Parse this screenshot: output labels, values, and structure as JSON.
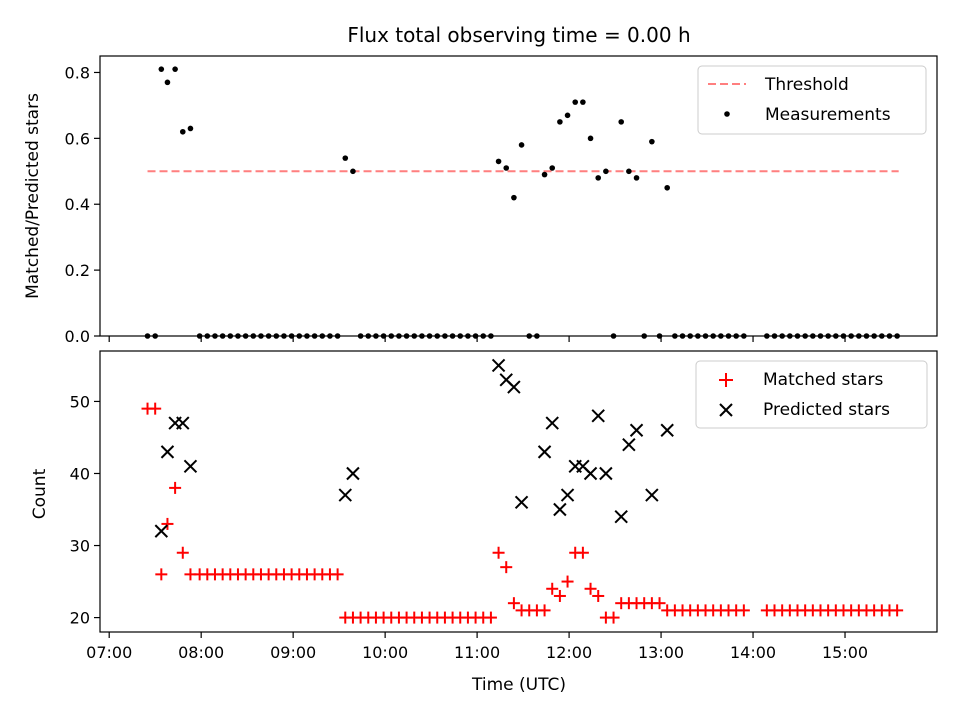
{
  "title": "Flux total observing time = 0.00 h",
  "chart_data": [
    {
      "type": "scatter",
      "title": "Flux total observing time = 0.00 h",
      "ylabel": "Matched/Predicted stars",
      "xlabel": "",
      "x_range": [
        "07:00",
        "16:00"
      ],
      "ylim": [
        0,
        0.85
      ],
      "yticks": [
        "0.0",
        "0.2",
        "0.4",
        "0.6",
        "0.8"
      ],
      "legend": {
        "placement": "top-right",
        "entries": [
          "Threshold",
          "Measurements"
        ]
      },
      "colors": {
        "threshold": "#ff7f7f",
        "measurements": "#000000"
      },
      "series": [
        {
          "name": "Threshold",
          "kind": "dashed-line",
          "points": [
            [
              "07:25",
              0.5
            ],
            [
              "15:35",
              0.5
            ]
          ]
        },
        {
          "name": "Measurements",
          "kind": "dots",
          "points": [
            [
              "07:25",
              0.0
            ],
            [
              "07:30",
              0.0
            ],
            [
              "07:34",
              0.81
            ],
            [
              "07:38",
              0.77
            ],
            [
              "07:43",
              0.81
            ],
            [
              "07:48",
              0.62
            ],
            [
              "07:53",
              0.63
            ],
            [
              "07:59",
              0.0
            ],
            [
              "08:04",
              0.0
            ],
            [
              "08:09",
              0.0
            ],
            [
              "08:14",
              0.0
            ],
            [
              "08:19",
              0.0
            ],
            [
              "08:24",
              0.0
            ],
            [
              "08:29",
              0.0
            ],
            [
              "08:34",
              0.0
            ],
            [
              "08:39",
              0.0
            ],
            [
              "08:44",
              0.0
            ],
            [
              "08:49",
              0.0
            ],
            [
              "08:54",
              0.0
            ],
            [
              "08:59",
              0.0
            ],
            [
              "09:04",
              0.0
            ],
            [
              "09:09",
              0.0
            ],
            [
              "09:14",
              0.0
            ],
            [
              "09:19",
              0.0
            ],
            [
              "09:24",
              0.0
            ],
            [
              "09:29",
              0.0
            ],
            [
              "09:34",
              0.54
            ],
            [
              "09:39",
              0.5
            ],
            [
              "09:44",
              0.0
            ],
            [
              "09:49",
              0.0
            ],
            [
              "09:54",
              0.0
            ],
            [
              "09:59",
              0.0
            ],
            [
              "10:04",
              0.0
            ],
            [
              "10:09",
              0.0
            ],
            [
              "10:14",
              0.0
            ],
            [
              "10:19",
              0.0
            ],
            [
              "10:24",
              0.0
            ],
            [
              "10:29",
              0.0
            ],
            [
              "10:34",
              0.0
            ],
            [
              "10:39",
              0.0
            ],
            [
              "10:44",
              0.0
            ],
            [
              "10:49",
              0.0
            ],
            [
              "10:54",
              0.0
            ],
            [
              "10:59",
              0.0
            ],
            [
              "11:04",
              0.0
            ],
            [
              "11:09",
              0.0
            ],
            [
              "11:14",
              0.53
            ],
            [
              "11:19",
              0.51
            ],
            [
              "11:24",
              0.42
            ],
            [
              "11:29",
              0.58
            ],
            [
              "11:34",
              0.0
            ],
            [
              "11:39",
              0.0
            ],
            [
              "11:44",
              0.49
            ],
            [
              "11:49",
              0.51
            ],
            [
              "11:54",
              0.65
            ],
            [
              "11:59",
              0.67
            ],
            [
              "12:04",
              0.71
            ],
            [
              "12:09",
              0.71
            ],
            [
              "12:14",
              0.6
            ],
            [
              "12:19",
              0.48
            ],
            [
              "12:24",
              0.5
            ],
            [
              "12:29",
              0.0
            ],
            [
              "12:34",
              0.65
            ],
            [
              "12:39",
              0.5
            ],
            [
              "12:44",
              0.48
            ],
            [
              "12:49",
              0.0
            ],
            [
              "12:54",
              0.59
            ],
            [
              "12:59",
              0.0
            ],
            [
              "13:04",
              0.45
            ],
            [
              "13:09",
              0.0
            ],
            [
              "13:14",
              0.0
            ],
            [
              "13:19",
              0.0
            ],
            [
              "13:24",
              0.0
            ],
            [
              "13:29",
              0.0
            ],
            [
              "13:34",
              0.0
            ],
            [
              "13:39",
              0.0
            ],
            [
              "13:44",
              0.0
            ],
            [
              "13:49",
              0.0
            ],
            [
              "13:54",
              0.0
            ],
            [
              "14:09",
              0.0
            ],
            [
              "14:14",
              0.0
            ],
            [
              "14:19",
              0.0
            ],
            [
              "14:24",
              0.0
            ],
            [
              "14:29",
              0.0
            ],
            [
              "14:34",
              0.0
            ],
            [
              "14:39",
              0.0
            ],
            [
              "14:44",
              0.0
            ],
            [
              "14:49",
              0.0
            ],
            [
              "14:54",
              0.0
            ],
            [
              "14:59",
              0.0
            ],
            [
              "15:04",
              0.0
            ],
            [
              "15:09",
              0.0
            ],
            [
              "15:14",
              0.0
            ],
            [
              "15:19",
              0.0
            ],
            [
              "15:24",
              0.0
            ],
            [
              "15:29",
              0.0
            ],
            [
              "15:34",
              0.0
            ]
          ]
        }
      ]
    },
    {
      "type": "scatter",
      "ylabel": "Count",
      "xlabel": "Time (UTC)",
      "x_range": [
        "07:00",
        "16:00"
      ],
      "xticks": [
        "07:00",
        "08:00",
        "09:00",
        "10:00",
        "11:00",
        "12:00",
        "13:00",
        "14:00",
        "15:00"
      ],
      "ylim": [
        18,
        57
      ],
      "yticks": [
        "20",
        "30",
        "40",
        "50"
      ],
      "legend": {
        "placement": "top-right",
        "entries": [
          "Matched stars",
          "Predicted stars"
        ]
      },
      "colors": {
        "matched": "#ff0000",
        "predicted": "#000000"
      },
      "series": [
        {
          "name": "Matched stars",
          "marker": "plus",
          "points": [
            [
              "07:25",
              49
            ],
            [
              "07:30",
              49
            ],
            [
              "07:34",
              26
            ],
            [
              "07:38",
              33
            ],
            [
              "07:43",
              38
            ],
            [
              "07:48",
              29
            ],
            [
              "07:53",
              26
            ],
            [
              "07:59",
              26
            ],
            [
              "08:04",
              26
            ],
            [
              "08:09",
              26
            ],
            [
              "08:14",
              26
            ],
            [
              "08:19",
              26
            ],
            [
              "08:24",
              26
            ],
            [
              "08:29",
              26
            ],
            [
              "08:34",
              26
            ],
            [
              "08:39",
              26
            ],
            [
              "08:44",
              26
            ],
            [
              "08:49",
              26
            ],
            [
              "08:54",
              26
            ],
            [
              "08:59",
              26
            ],
            [
              "09:04",
              26
            ],
            [
              "09:09",
              26
            ],
            [
              "09:14",
              26
            ],
            [
              "09:19",
              26
            ],
            [
              "09:24",
              26
            ],
            [
              "09:29",
              26
            ],
            [
              "09:34",
              20
            ],
            [
              "09:39",
              20
            ],
            [
              "09:44",
              20
            ],
            [
              "09:49",
              20
            ],
            [
              "09:54",
              20
            ],
            [
              "09:59",
              20
            ],
            [
              "10:04",
              20
            ],
            [
              "10:09",
              20
            ],
            [
              "10:14",
              20
            ],
            [
              "10:19",
              20
            ],
            [
              "10:24",
              20
            ],
            [
              "10:29",
              20
            ],
            [
              "10:34",
              20
            ],
            [
              "10:39",
              20
            ],
            [
              "10:44",
              20
            ],
            [
              "10:49",
              20
            ],
            [
              "10:54",
              20
            ],
            [
              "10:59",
              20
            ],
            [
              "11:04",
              20
            ],
            [
              "11:09",
              20
            ],
            [
              "11:14",
              29
            ],
            [
              "11:19",
              27
            ],
            [
              "11:24",
              22
            ],
            [
              "11:29",
              21
            ],
            [
              "11:34",
              21
            ],
            [
              "11:39",
              21
            ],
            [
              "11:44",
              21
            ],
            [
              "11:49",
              24
            ],
            [
              "11:54",
              23
            ],
            [
              "11:59",
              25
            ],
            [
              "12:04",
              29
            ],
            [
              "12:09",
              29
            ],
            [
              "12:14",
              24
            ],
            [
              "12:19",
              23
            ],
            [
              "12:24",
              20
            ],
            [
              "12:29",
              20
            ],
            [
              "12:34",
              22
            ],
            [
              "12:39",
              22
            ],
            [
              "12:44",
              22
            ],
            [
              "12:49",
              22
            ],
            [
              "12:54",
              22
            ],
            [
              "12:59",
              22
            ],
            [
              "13:04",
              21
            ],
            [
              "13:09",
              21
            ],
            [
              "13:14",
              21
            ],
            [
              "13:19",
              21
            ],
            [
              "13:24",
              21
            ],
            [
              "13:29",
              21
            ],
            [
              "13:34",
              21
            ],
            [
              "13:39",
              21
            ],
            [
              "13:44",
              21
            ],
            [
              "13:49",
              21
            ],
            [
              "13:54",
              21
            ],
            [
              "14:09",
              21
            ],
            [
              "14:14",
              21
            ],
            [
              "14:19",
              21
            ],
            [
              "14:24",
              21
            ],
            [
              "14:29",
              21
            ],
            [
              "14:34",
              21
            ],
            [
              "14:39",
              21
            ],
            [
              "14:44",
              21
            ],
            [
              "14:49",
              21
            ],
            [
              "14:54",
              21
            ],
            [
              "14:59",
              21
            ],
            [
              "15:04",
              21
            ],
            [
              "15:09",
              21
            ],
            [
              "15:14",
              21
            ],
            [
              "15:19",
              21
            ],
            [
              "15:24",
              21
            ],
            [
              "15:29",
              21
            ],
            [
              "15:34",
              21
            ]
          ]
        },
        {
          "name": "Predicted stars",
          "marker": "x",
          "points": [
            [
              "07:34",
              32
            ],
            [
              "07:38",
              43
            ],
            [
              "07:43",
              47
            ],
            [
              "07:48",
              47
            ],
            [
              "07:53",
              41
            ],
            [
              "09:34",
              37
            ],
            [
              "09:39",
              40
            ],
            [
              "11:14",
              55
            ],
            [
              "11:19",
              53
            ],
            [
              "11:24",
              52
            ],
            [
              "11:29",
              36
            ],
            [
              "11:44",
              43
            ],
            [
              "11:49",
              47
            ],
            [
              "11:54",
              35
            ],
            [
              "11:59",
              37
            ],
            [
              "12:04",
              41
            ],
            [
              "12:09",
              41
            ],
            [
              "12:14",
              40
            ],
            [
              "12:19",
              48
            ],
            [
              "12:24",
              40
            ],
            [
              "12:34",
              34
            ],
            [
              "12:39",
              44
            ],
            [
              "12:44",
              46
            ],
            [
              "12:54",
              37
            ],
            [
              "13:04",
              46
            ]
          ]
        }
      ]
    }
  ]
}
